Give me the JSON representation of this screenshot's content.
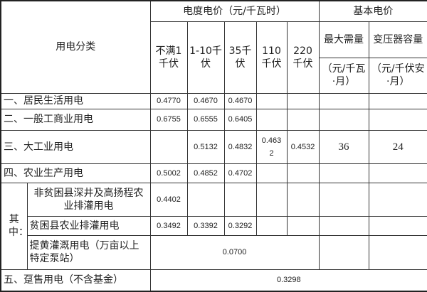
{
  "header": {
    "category": "用电分类",
    "energy_price": "电度电价（元/千瓦时）",
    "basic_price": "基本电价",
    "voltages": [
      "不满1千伏",
      "1-10千伏",
      "35千伏",
      "110千伏",
      "220千伏"
    ],
    "max_demand": "最大需量",
    "transformer_capacity": "变压器容量",
    "max_demand_unit": "（元/千瓦·月）",
    "transformer_unit": "（元/千伏安·月）"
  },
  "rows": [
    {
      "label": "一、居民生活用电",
      "values": [
        "0.4770",
        "0.4670",
        "0.4670",
        "",
        "",
        "",
        ""
      ]
    },
    {
      "label": "二、一般工商业用电",
      "values": [
        "0.6755",
        "0.6555",
        "0.6405",
        "",
        "",
        "",
        ""
      ]
    },
    {
      "label": "三、大工业用电",
      "values": [
        "",
        "0.5132",
        "0.4832",
        "0.4632",
        "0.4532",
        "36",
        "24"
      ]
    },
    {
      "label": "四、农业生产用电",
      "values": [
        "0.5002",
        "0.4852",
        "0.4702",
        "",
        "",
        "",
        ""
      ]
    }
  ],
  "sub": {
    "label": "其中：",
    "rows": [
      {
        "label": "非贫困县深井及高扬程农业排灌用电",
        "values": [
          "0.4402",
          "",
          "",
          "",
          "",
          "",
          ""
        ]
      },
      {
        "label": "贫困县农业排灌用电",
        "values": [
          "0.3492",
          "0.3392",
          "0.3292",
          "",
          "",
          "",
          ""
        ]
      },
      {
        "label": "提黄灌溉用电（万亩以上特定泵站）",
        "value": "0.0700"
      }
    ]
  },
  "wholesale": {
    "label": "五、趸售用电（不含基金）",
    "value": "0.3298"
  }
}
